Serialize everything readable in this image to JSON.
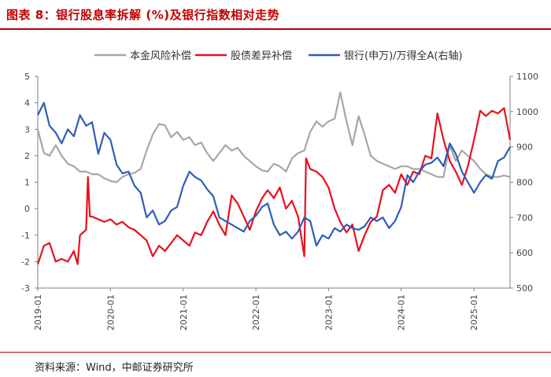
{
  "header": {
    "title": "图表 8：银行股息率拆解 (%)及银行指数相对走势"
  },
  "footer": {
    "source": "资料来源：Wind，中邮证券研究所"
  },
  "chart_data": {
    "type": "line",
    "x_ticks": [
      "2019-01",
      "2020-01",
      "2021-01",
      "2022-01",
      "2023-01",
      "2024-01",
      "2025-01"
    ],
    "left_axis": {
      "min": -3,
      "max": 5,
      "ticks": [
        -3,
        -2,
        -1,
        0,
        1,
        2,
        3,
        4,
        5
      ]
    },
    "right_axis": {
      "min": 500,
      "max": 1100,
      "ticks": [
        500,
        600,
        700,
        800,
        900,
        1000,
        1100
      ]
    },
    "legend_position": "top",
    "grid": false,
    "series": [
      {
        "name": "本金风险补偿",
        "color": "#a6a6a6",
        "axis": "left",
        "points": [
          [
            "2019-01-01",
            3.0
          ],
          [
            "2019-02-01",
            2.1
          ],
          [
            "2019-03-01",
            2.0
          ],
          [
            "2019-04-01",
            2.4
          ],
          [
            "2019-05-01",
            2.0
          ],
          [
            "2019-06-01",
            1.7
          ],
          [
            "2019-07-01",
            1.6
          ],
          [
            "2019-08-01",
            1.4
          ],
          [
            "2019-09-01",
            1.4
          ],
          [
            "2019-10-01",
            1.3
          ],
          [
            "2019-11-01",
            1.3
          ],
          [
            "2019-12-01",
            1.15
          ],
          [
            "2020-01-01",
            1.05
          ],
          [
            "2020-02-01",
            1.0
          ],
          [
            "2020-03-01",
            1.2
          ],
          [
            "2020-04-01",
            1.3
          ],
          [
            "2020-05-01",
            1.35
          ],
          [
            "2020-06-01",
            1.5
          ],
          [
            "2020-07-01",
            2.2
          ],
          [
            "2020-08-01",
            2.8
          ],
          [
            "2020-09-01",
            3.2
          ],
          [
            "2020-10-01",
            3.15
          ],
          [
            "2020-11-01",
            2.7
          ],
          [
            "2020-12-01",
            2.9
          ],
          [
            "2021-01-01",
            2.6
          ],
          [
            "2021-02-01",
            2.7
          ],
          [
            "2021-03-01",
            2.4
          ],
          [
            "2021-04-01",
            2.5
          ],
          [
            "2021-05-01",
            2.1
          ],
          [
            "2021-06-01",
            1.8
          ],
          [
            "2021-07-01",
            2.1
          ],
          [
            "2021-08-01",
            2.4
          ],
          [
            "2021-09-01",
            2.2
          ],
          [
            "2021-10-01",
            2.3
          ],
          [
            "2021-11-01",
            2.0
          ],
          [
            "2021-12-01",
            1.8
          ],
          [
            "2022-01-01",
            1.6
          ],
          [
            "2022-02-01",
            1.45
          ],
          [
            "2022-03-01",
            1.4
          ],
          [
            "2022-04-01",
            1.7
          ],
          [
            "2022-05-01",
            1.6
          ],
          [
            "2022-06-01",
            1.4
          ],
          [
            "2022-07-01",
            1.9
          ],
          [
            "2022-08-01",
            2.1
          ],
          [
            "2022-09-01",
            2.2
          ],
          [
            "2022-10-01",
            2.9
          ],
          [
            "2022-11-01",
            3.3
          ],
          [
            "2022-12-01",
            3.1
          ],
          [
            "2023-01-01",
            3.3
          ],
          [
            "2023-02-01",
            3.4
          ],
          [
            "2023-03-01",
            4.4
          ],
          [
            "2023-04-01",
            3.3
          ],
          [
            "2023-05-01",
            2.4
          ],
          [
            "2023-06-01",
            3.5
          ],
          [
            "2023-07-01",
            2.8
          ],
          [
            "2023-08-01",
            2.0
          ],
          [
            "2023-09-01",
            1.8
          ],
          [
            "2023-10-01",
            1.7
          ],
          [
            "2023-11-01",
            1.6
          ],
          [
            "2023-12-01",
            1.5
          ],
          [
            "2024-01-01",
            1.6
          ],
          [
            "2024-02-01",
            1.6
          ],
          [
            "2024-03-01",
            1.5
          ],
          [
            "2024-04-01",
            1.5
          ],
          [
            "2024-05-01",
            1.4
          ],
          [
            "2024-06-01",
            1.3
          ],
          [
            "2024-07-01",
            1.2
          ],
          [
            "2024-08-01",
            1.2
          ],
          [
            "2024-09-01",
            2.4
          ],
          [
            "2024-10-01",
            1.8
          ],
          [
            "2024-11-01",
            2.2
          ],
          [
            "2024-12-01",
            2.0
          ],
          [
            "2025-01-01",
            1.8
          ],
          [
            "2025-02-01",
            1.5
          ],
          [
            "2025-03-01",
            1.3
          ],
          [
            "2025-04-01",
            1.2
          ],
          [
            "2025-05-01",
            1.2
          ],
          [
            "2025-06-01",
            1.25
          ],
          [
            "2025-07-01",
            1.2
          ]
        ]
      },
      {
        "name": "股债差异补偿",
        "color": "#e8101c",
        "axis": "left",
        "points": [
          [
            "2019-01-01",
            -2.1
          ],
          [
            "2019-02-01",
            -1.4
          ],
          [
            "2019-03-01",
            -1.3
          ],
          [
            "2019-04-01",
            -2.0
          ],
          [
            "2019-05-01",
            -1.9
          ],
          [
            "2019-06-01",
            -2.0
          ],
          [
            "2019-07-01",
            -1.6
          ],
          [
            "2019-07-20",
            -2.1
          ],
          [
            "2019-08-01",
            -1.0
          ],
          [
            "2019-09-01",
            -0.8
          ],
          [
            "2019-09-10",
            1.2
          ],
          [
            "2019-09-20",
            -0.3
          ],
          [
            "2019-10-01",
            -0.3
          ],
          [
            "2019-11-01",
            -0.4
          ],
          [
            "2019-12-01",
            -0.5
          ],
          [
            "2020-01-01",
            -0.4
          ],
          [
            "2020-02-01",
            -0.6
          ],
          [
            "2020-03-01",
            -0.5
          ],
          [
            "2020-04-01",
            -0.7
          ],
          [
            "2020-05-01",
            -0.8
          ],
          [
            "2020-06-01",
            -1.0
          ],
          [
            "2020-07-01",
            -1.2
          ],
          [
            "2020-08-01",
            -1.8
          ],
          [
            "2020-09-01",
            -1.4
          ],
          [
            "2020-10-01",
            -1.6
          ],
          [
            "2020-11-01",
            -1.3
          ],
          [
            "2020-12-01",
            -1.0
          ],
          [
            "2021-01-01",
            -1.2
          ],
          [
            "2021-02-01",
            -1.4
          ],
          [
            "2021-03-01",
            -0.9
          ],
          [
            "2021-04-01",
            -1.0
          ],
          [
            "2021-05-01",
            -0.5
          ],
          [
            "2021-06-01",
            -0.1
          ],
          [
            "2021-07-01",
            -0.6
          ],
          [
            "2021-08-01",
            -1.0
          ],
          [
            "2021-09-01",
            0.5
          ],
          [
            "2021-10-01",
            0.2
          ],
          [
            "2021-11-01",
            -0.3
          ],
          [
            "2021-12-01",
            -0.8
          ],
          [
            "2022-01-01",
            -0.1
          ],
          [
            "2022-02-01",
            0.4
          ],
          [
            "2022-03-01",
            0.7
          ],
          [
            "2022-04-01",
            0.4
          ],
          [
            "2022-05-01",
            0.8
          ],
          [
            "2022-06-01",
            0.0
          ],
          [
            "2022-07-01",
            0.3
          ],
          [
            "2022-08-01",
            -0.3
          ],
          [
            "2022-09-01",
            -1.8
          ],
          [
            "2022-09-10",
            1.9
          ],
          [
            "2022-10-01",
            1.5
          ],
          [
            "2022-11-01",
            1.4
          ],
          [
            "2022-12-01",
            1.2
          ],
          [
            "2023-01-01",
            0.8
          ],
          [
            "2023-02-01",
            0.0
          ],
          [
            "2023-03-01",
            -0.5
          ],
          [
            "2023-04-01",
            -0.9
          ],
          [
            "2023-05-01",
            -0.6
          ],
          [
            "2023-06-01",
            -1.6
          ],
          [
            "2023-07-01",
            -1.0
          ],
          [
            "2023-08-01",
            -0.5
          ],
          [
            "2023-09-01",
            -0.3
          ],
          [
            "2023-10-01",
            0.7
          ],
          [
            "2023-11-01",
            0.9
          ],
          [
            "2023-12-01",
            0.6
          ],
          [
            "2024-01-01",
            1.3
          ],
          [
            "2024-02-01",
            0.9
          ],
          [
            "2024-03-01",
            1.4
          ],
          [
            "2024-04-01",
            1.3
          ],
          [
            "2024-05-01",
            2.0
          ],
          [
            "2024-06-01",
            1.9
          ],
          [
            "2024-07-01",
            3.6
          ],
          [
            "2024-08-01",
            2.6
          ],
          [
            "2024-09-01",
            1.8
          ],
          [
            "2024-10-01",
            1.4
          ],
          [
            "2024-11-01",
            0.9
          ],
          [
            "2024-12-01",
            1.6
          ],
          [
            "2025-01-01",
            2.6
          ],
          [
            "2025-02-01",
            3.7
          ],
          [
            "2025-03-01",
            3.5
          ],
          [
            "2025-04-01",
            3.7
          ],
          [
            "2025-05-01",
            3.6
          ],
          [
            "2025-06-01",
            3.8
          ],
          [
            "2025-07-01",
            2.6
          ]
        ]
      },
      {
        "name": "银行(申万)/万得全A(右轴)",
        "color": "#2e5eb8",
        "axis": "right",
        "points": [
          [
            "2019-01-01",
            990
          ],
          [
            "2019-02-01",
            1025
          ],
          [
            "2019-03-01",
            960
          ],
          [
            "2019-04-01",
            940
          ],
          [
            "2019-05-01",
            910
          ],
          [
            "2019-06-01",
            950
          ],
          [
            "2019-07-01",
            930
          ],
          [
            "2019-08-01",
            990
          ],
          [
            "2019-09-01",
            960
          ],
          [
            "2019-10-01",
            970
          ],
          [
            "2019-11-01",
            880
          ],
          [
            "2019-12-01",
            940
          ],
          [
            "2020-01-01",
            920
          ],
          [
            "2020-02-01",
            850
          ],
          [
            "2020-03-01",
            825
          ],
          [
            "2020-04-01",
            830
          ],
          [
            "2020-05-01",
            790
          ],
          [
            "2020-06-01",
            770
          ],
          [
            "2020-07-01",
            700
          ],
          [
            "2020-08-01",
            720
          ],
          [
            "2020-09-01",
            680
          ],
          [
            "2020-10-01",
            690
          ],
          [
            "2020-11-01",
            720
          ],
          [
            "2020-12-01",
            730
          ],
          [
            "2021-01-01",
            790
          ],
          [
            "2021-02-01",
            830
          ],
          [
            "2021-03-01",
            815
          ],
          [
            "2021-04-01",
            805
          ],
          [
            "2021-05-01",
            780
          ],
          [
            "2021-06-01",
            760
          ],
          [
            "2021-07-01",
            700
          ],
          [
            "2021-08-01",
            690
          ],
          [
            "2021-09-01",
            680
          ],
          [
            "2021-10-01",
            670
          ],
          [
            "2021-11-01",
            660
          ],
          [
            "2021-12-01",
            690
          ],
          [
            "2022-01-01",
            705
          ],
          [
            "2022-02-01",
            730
          ],
          [
            "2022-03-01",
            740
          ],
          [
            "2022-04-01",
            680
          ],
          [
            "2022-05-01",
            650
          ],
          [
            "2022-06-01",
            660
          ],
          [
            "2022-07-01",
            640
          ],
          [
            "2022-08-01",
            660
          ],
          [
            "2022-09-01",
            700
          ],
          [
            "2022-10-01",
            690
          ],
          [
            "2022-11-01",
            620
          ],
          [
            "2022-12-01",
            650
          ],
          [
            "2023-01-01",
            640
          ],
          [
            "2023-02-01",
            670
          ],
          [
            "2023-03-01",
            660
          ],
          [
            "2023-04-01",
            680
          ],
          [
            "2023-05-01",
            670
          ],
          [
            "2023-06-01",
            665
          ],
          [
            "2023-07-01",
            675
          ],
          [
            "2023-08-01",
            700
          ],
          [
            "2023-09-01",
            690
          ],
          [
            "2023-10-01",
            700
          ],
          [
            "2023-11-01",
            670
          ],
          [
            "2023-12-01",
            690
          ],
          [
            "2024-01-01",
            730
          ],
          [
            "2024-02-01",
            820
          ],
          [
            "2024-03-01",
            800
          ],
          [
            "2024-04-01",
            830
          ],
          [
            "2024-05-01",
            850
          ],
          [
            "2024-06-01",
            855
          ],
          [
            "2024-07-01",
            870
          ],
          [
            "2024-08-01",
            845
          ],
          [
            "2024-09-01",
            910
          ],
          [
            "2024-10-01",
            880
          ],
          [
            "2024-11-01",
            830
          ],
          [
            "2024-12-01",
            800
          ],
          [
            "2025-01-01",
            770
          ],
          [
            "2025-02-01",
            800
          ],
          [
            "2025-03-01",
            820
          ],
          [
            "2025-04-01",
            810
          ],
          [
            "2025-05-01",
            860
          ],
          [
            "2025-06-01",
            870
          ],
          [
            "2025-07-01",
            900
          ]
        ]
      }
    ]
  }
}
